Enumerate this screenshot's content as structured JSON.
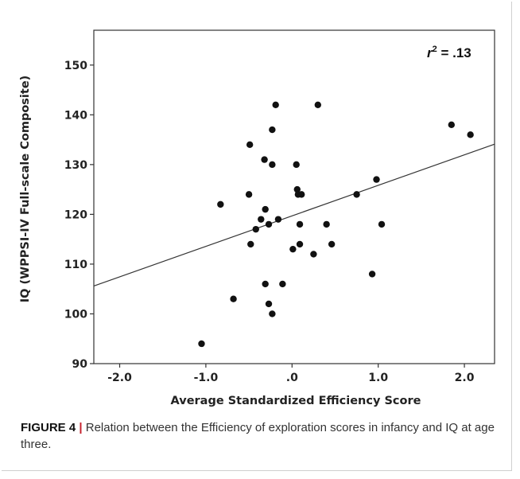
{
  "figure": {
    "label": "FIGURE 4",
    "separator": "|",
    "caption": "Relation between the Efficiency of exploration scores in infancy and IQ at age three."
  },
  "chart_data": {
    "type": "scatter",
    "title": "",
    "xlabel": "Average Standardized Efficiency Score",
    "ylabel": "IQ (WPPSI-IV Full-scale Composite)",
    "xlim": [
      -2.3,
      2.35
    ],
    "ylim": [
      90,
      157
    ],
    "xticks": [
      "-2.0",
      "-1.0",
      ".0",
      "1.0",
      "2.0"
    ],
    "xtick_values": [
      -2.0,
      -1.0,
      0.0,
      1.0,
      2.0
    ],
    "yticks": [
      "90",
      "100",
      "110",
      "120",
      "130",
      "140",
      "150"
    ],
    "ytick_values": [
      90,
      100,
      110,
      120,
      130,
      140,
      150
    ],
    "annotation": {
      "r_symbol": "r",
      "exponent": "2",
      "text": " = .13"
    },
    "fit_line": {
      "x": [
        -2.3,
        2.35
      ],
      "y": [
        105.6,
        134.1
      ]
    },
    "points": [
      {
        "x": -1.05,
        "y": 94
      },
      {
        "x": -0.83,
        "y": 122
      },
      {
        "x": -0.68,
        "y": 103
      },
      {
        "x": -0.49,
        "y": 134
      },
      {
        "x": -0.5,
        "y": 124
      },
      {
        "x": -0.48,
        "y": 114
      },
      {
        "x": -0.42,
        "y": 117
      },
      {
        "x": -0.36,
        "y": 119
      },
      {
        "x": -0.32,
        "y": 131
      },
      {
        "x": -0.31,
        "y": 121
      },
      {
        "x": -0.31,
        "y": 106
      },
      {
        "x": -0.27,
        "y": 118
      },
      {
        "x": -0.27,
        "y": 102
      },
      {
        "x": -0.23,
        "y": 137
      },
      {
        "x": -0.23,
        "y": 130
      },
      {
        "x": -0.23,
        "y": 100
      },
      {
        "x": -0.19,
        "y": 142
      },
      {
        "x": -0.16,
        "y": 119
      },
      {
        "x": -0.11,
        "y": 106
      },
      {
        "x": 0.01,
        "y": 113
      },
      {
        "x": 0.05,
        "y": 130
      },
      {
        "x": 0.06,
        "y": 125
      },
      {
        "x": 0.07,
        "y": 124
      },
      {
        "x": 0.09,
        "y": 114
      },
      {
        "x": 0.09,
        "y": 118
      },
      {
        "x": 0.11,
        "y": 124
      },
      {
        "x": 0.25,
        "y": 112
      },
      {
        "x": 0.3,
        "y": 142
      },
      {
        "x": 0.4,
        "y": 118
      },
      {
        "x": 0.46,
        "y": 114
      },
      {
        "x": 0.75,
        "y": 124
      },
      {
        "x": 0.93,
        "y": 108
      },
      {
        "x": 0.98,
        "y": 127
      },
      {
        "x": 1.04,
        "y": 118
      },
      {
        "x": 1.85,
        "y": 138
      },
      {
        "x": 2.07,
        "y": 136
      }
    ],
    "grid": false,
    "legend": "none"
  }
}
